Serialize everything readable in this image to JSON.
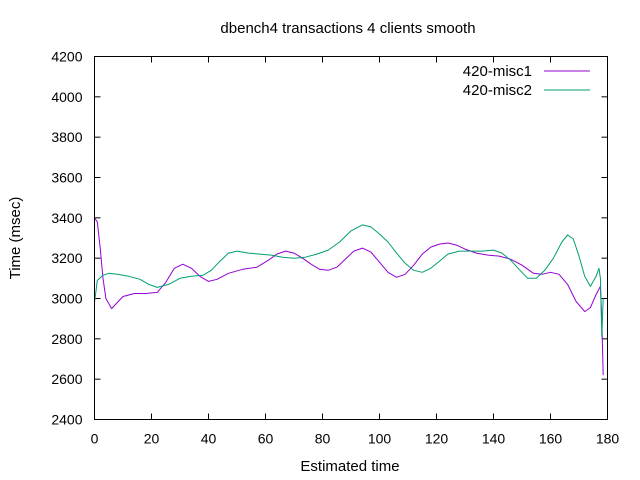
{
  "chart_data": {
    "type": "line",
    "title": "dbench4 transactions 4 clients smooth",
    "xlabel": "Estimated time",
    "ylabel": "Time (msec)",
    "xlim": [
      0,
      180
    ],
    "ylim": [
      2400,
      4200
    ],
    "x_ticks": [
      "0",
      "20",
      "40",
      "60",
      "80",
      "100",
      "120",
      "140",
      "160",
      "180"
    ],
    "y_ticks": [
      "2400",
      "2600",
      "2800",
      "3000",
      "3200",
      "3400",
      "3600",
      "3800",
      "4000",
      "4200"
    ],
    "grid": false,
    "legend_position": "top-right",
    "series": [
      {
        "name": "420-misc1",
        "color": "#9400d3",
        "points": [
          [
            0,
            3400
          ],
          [
            1,
            3380
          ],
          [
            2,
            3250
          ],
          [
            3,
            3100
          ],
          [
            4,
            3000
          ],
          [
            6,
            2950
          ],
          [
            8,
            2980
          ],
          [
            10,
            3010
          ],
          [
            14,
            3025
          ],
          [
            18,
            3025
          ],
          [
            22,
            3030
          ],
          [
            25,
            3080
          ],
          [
            28,
            3150
          ],
          [
            31,
            3170
          ],
          [
            34,
            3150
          ],
          [
            37,
            3110
          ],
          [
            40,
            3085
          ],
          [
            43,
            3095
          ],
          [
            47,
            3125
          ],
          [
            52,
            3145
          ],
          [
            57,
            3155
          ],
          [
            61,
            3190
          ],
          [
            64,
            3220
          ],
          [
            67,
            3235
          ],
          [
            70,
            3225
          ],
          [
            73,
            3200
          ],
          [
            76,
            3170
          ],
          [
            79,
            3145
          ],
          [
            82,
            3140
          ],
          [
            85,
            3155
          ],
          [
            88,
            3195
          ],
          [
            91,
            3235
          ],
          [
            94,
            3250
          ],
          [
            97,
            3230
          ],
          [
            100,
            3180
          ],
          [
            103,
            3130
          ],
          [
            106,
            3105
          ],
          [
            109,
            3120
          ],
          [
            112,
            3165
          ],
          [
            115,
            3220
          ],
          [
            118,
            3255
          ],
          [
            121,
            3270
          ],
          [
            124,
            3275
          ],
          [
            127,
            3265
          ],
          [
            130,
            3245
          ],
          [
            134,
            3225
          ],
          [
            138,
            3215
          ],
          [
            142,
            3210
          ],
          [
            146,
            3195
          ],
          [
            150,
            3165
          ],
          [
            154,
            3125
          ],
          [
            157,
            3120
          ],
          [
            160,
            3130
          ],
          [
            163,
            3120
          ],
          [
            166,
            3070
          ],
          [
            169,
            2985
          ],
          [
            172,
            2935
          ],
          [
            174,
            2955
          ],
          [
            176,
            3020
          ],
          [
            177.5,
            3060
          ],
          [
            178,
            2900
          ],
          [
            178.5,
            2620
          ]
        ]
      },
      {
        "name": "420-misc2",
        "color": "#009e73",
        "points": [
          [
            0,
            2980
          ],
          [
            1,
            3090
          ],
          [
            3,
            3115
          ],
          [
            5,
            3125
          ],
          [
            8,
            3120
          ],
          [
            12,
            3110
          ],
          [
            16,
            3095
          ],
          [
            19,
            3070
          ],
          [
            22,
            3055
          ],
          [
            26,
            3070
          ],
          [
            30,
            3100
          ],
          [
            34,
            3110
          ],
          [
            38,
            3115
          ],
          [
            41,
            3140
          ],
          [
            44,
            3185
          ],
          [
            47,
            3225
          ],
          [
            50,
            3235
          ],
          [
            54,
            3225
          ],
          [
            58,
            3220
          ],
          [
            62,
            3215
          ],
          [
            66,
            3205
          ],
          [
            70,
            3200
          ],
          [
            74,
            3205
          ],
          [
            78,
            3220
          ],
          [
            82,
            3240
          ],
          [
            86,
            3280
          ],
          [
            90,
            3335
          ],
          [
            94,
            3365
          ],
          [
            97,
            3355
          ],
          [
            100,
            3320
          ],
          [
            103,
            3280
          ],
          [
            106,
            3225
          ],
          [
            109,
            3175
          ],
          [
            112,
            3140
          ],
          [
            115,
            3130
          ],
          [
            118,
            3150
          ],
          [
            121,
            3185
          ],
          [
            124,
            3220
          ],
          [
            128,
            3235
          ],
          [
            132,
            3235
          ],
          [
            136,
            3235
          ],
          [
            140,
            3240
          ],
          [
            143,
            3225
          ],
          [
            146,
            3190
          ],
          [
            149,
            3145
          ],
          [
            152,
            3100
          ],
          [
            155,
            3100
          ],
          [
            158,
            3140
          ],
          [
            161,
            3200
          ],
          [
            164,
            3280
          ],
          [
            166,
            3315
          ],
          [
            168,
            3295
          ],
          [
            170,
            3210
          ],
          [
            172,
            3110
          ],
          [
            174,
            3060
          ],
          [
            176,
            3110
          ],
          [
            177,
            3150
          ],
          [
            177.5,
            3100
          ],
          [
            178,
            2810
          ],
          [
            178.5,
            3000
          ]
        ]
      }
    ]
  }
}
